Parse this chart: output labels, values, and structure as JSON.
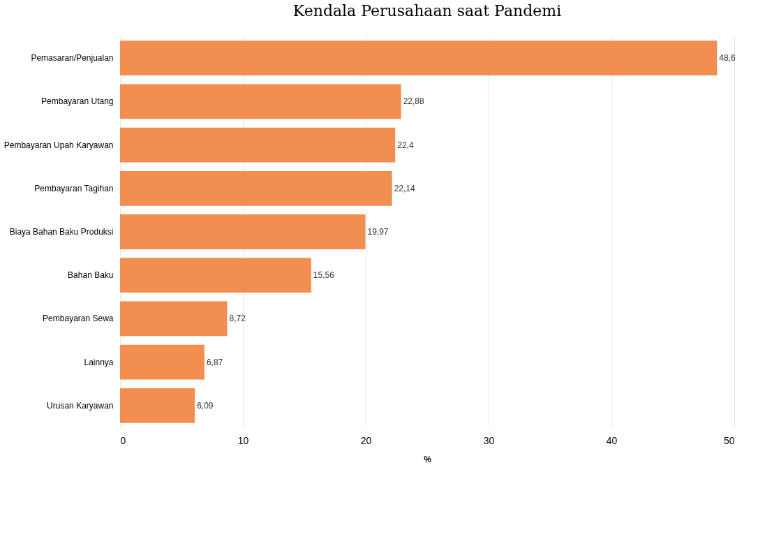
{
  "chart_data": {
    "type": "bar",
    "orientation": "horizontal",
    "title": "Kendala Perusahaan saat Pandemi",
    "xlabel": "%",
    "categories": [
      "Pemasaran/Penjualan",
      "Pembayaran Utang",
      "Pembayaran Upah Karyawan",
      "Pembayaran Tagihan",
      "Biaya Bahan Baku Produksi",
      "Bahan Baku",
      "Pembayaran Sewa",
      "Lainnya",
      "Urusan Karyawan"
    ],
    "values": [
      48.6,
      22.88,
      22.4,
      22.14,
      19.97,
      15.56,
      8.72,
      6.87,
      6.09
    ],
    "value_labels": [
      "48,6",
      "22,88",
      "22,4",
      "22,14",
      "19,97",
      "15,56",
      "8,72",
      "6,87",
      "6,09"
    ],
    "color": "#f28e50",
    "xlim": [
      0,
      50
    ],
    "xticks": [
      0,
      10,
      20,
      30,
      40,
      50
    ],
    "grid": "x"
  }
}
